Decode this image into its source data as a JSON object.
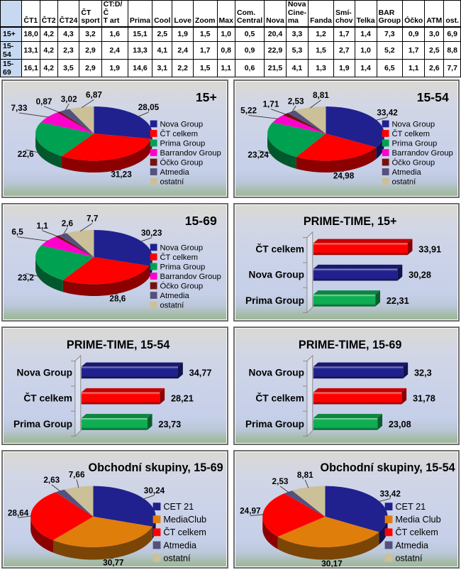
{
  "table": {
    "corner": "",
    "headers": [
      "ČT1",
      "ČT2",
      "ČT24",
      "ČT\nsport",
      "ČT:D/Č\nT art",
      "Prima",
      "Cool",
      "Love",
      "Zoom",
      "Max",
      "Com.\nCentral",
      "Nova",
      "Nova\nCine-\nma",
      "Fanda",
      "Smí-\nchov",
      "Telka",
      "BAR\nGroup",
      "Óčko",
      "ATM",
      "ost."
    ],
    "rows": [
      {
        "label": "15+",
        "values": [
          "18,0",
          "4,2",
          "4,3",
          "3,2",
          "1,6",
          "15,1",
          "2,5",
          "1,9",
          "1,5",
          "1,0",
          "0,5",
          "20,4",
          "3,3",
          "1,2",
          "1,7",
          "1,4",
          "7,3",
          "0,9",
          "3,0",
          "6,9"
        ]
      },
      {
        "label": "15-54",
        "values": [
          "13,1",
          "4,2",
          "2,3",
          "2,9",
          "2,4",
          "13,3",
          "4,1",
          "2,4",
          "1,7",
          "0,8",
          "0,9",
          "22,9",
          "5,3",
          "1,5",
          "2,7",
          "1,0",
          "5,2",
          "1,7",
          "2,5",
          "8,8"
        ]
      },
      {
        "label": "15-69",
        "values": [
          "16,1",
          "4,2",
          "3,5",
          "2,9",
          "1,9",
          "14,6",
          "3,1",
          "2,2",
          "1,5",
          "1,1",
          "0,6",
          "21,5",
          "4,1",
          "1,3",
          "1,9",
          "1,4",
          "6,5",
          "1,1",
          "2,6",
          "7,7"
        ]
      }
    ]
  },
  "colors": {
    "navy": "#20218E",
    "red": "#FF0000",
    "green": "#00A151",
    "magenta": "#FF00CC",
    "maroon": "#78100F",
    "purple": "#55517E",
    "tan": "#CBC098",
    "orange": "#E07E0C",
    "bar_green": "#0FAE52",
    "panel_border": "#6e6e6e",
    "table_accent": "#C6D9F1"
  },
  "chart_data": [
    {
      "type": "pie",
      "title": "15+",
      "title_align": "right",
      "series": [
        {
          "name": "Nova Group",
          "value": 28.05,
          "color": "#20218E"
        },
        {
          "name": "ČT celkem",
          "value": 31.23,
          "color": "#FF0000"
        },
        {
          "name": "Prima Group",
          "value": 22.6,
          "color": "#00A151"
        },
        {
          "name": "Barrandov Group",
          "value": 7.33,
          "color": "#FF00CC"
        },
        {
          "name": "Óčko Group",
          "value": 0.87,
          "color": "#78100F"
        },
        {
          "name": "Atmedia",
          "value": 3.02,
          "color": "#55517E"
        },
        {
          "name": "ostatní",
          "value": 6.87,
          "color": "#CBC098"
        }
      ]
    },
    {
      "type": "pie",
      "title": "15-54",
      "title_align": "right",
      "series": [
        {
          "name": "Nova Group",
          "value": 33.42,
          "color": "#20218E"
        },
        {
          "name": "ČT celkem",
          "value": 24.98,
          "color": "#FF0000"
        },
        {
          "name": "Prima Group",
          "value": 23.24,
          "color": "#00A151"
        },
        {
          "name": "Barrandov Group",
          "value": 5.22,
          "color": "#FF00CC"
        },
        {
          "name": "Óčko Group",
          "value": 1.71,
          "color": "#78100F"
        },
        {
          "name": "Atmedia",
          "value": 2.53,
          "color": "#55517E"
        },
        {
          "name": "ostatní",
          "value": 8.81,
          "color": "#CBC098"
        }
      ]
    },
    {
      "type": "pie",
      "title": "15-69",
      "title_align": "right",
      "series": [
        {
          "name": "Nova Group",
          "value": 30.23,
          "color": "#20218E"
        },
        {
          "name": "ČT celkem",
          "value": 28.6,
          "color": "#FF0000"
        },
        {
          "name": "Prima Group",
          "value": 23.2,
          "color": "#00A151"
        },
        {
          "name": "Barrandov Group",
          "value": 6.5,
          "color": "#FF00CC"
        },
        {
          "name": "Óčko Group",
          "value": 1.1,
          "color": "#78100F"
        },
        {
          "name": "Atmedia",
          "value": 2.6,
          "color": "#55517E"
        },
        {
          "name": "ostatní",
          "value": 7.7,
          "color": "#CBC098"
        }
      ]
    },
    {
      "type": "bar",
      "title": "PRIME-TIME, 15+",
      "title_align": "center",
      "categories": [
        "ČT celkem",
        "Nova Group",
        "Prima Group"
      ],
      "values": [
        33.91,
        30.28,
        22.31
      ],
      "bar_colors": [
        "#FF0000",
        "#20218E",
        "#0FAE52"
      ],
      "xlim": [
        0,
        40
      ]
    },
    {
      "type": "bar",
      "title": "PRIME-TIME, 15-54",
      "title_align": "center",
      "categories": [
        "Nova Group",
        "ČT celkem",
        "Prima Group"
      ],
      "values": [
        34.77,
        28.21,
        23.73
      ],
      "bar_colors": [
        "#20218E",
        "#FF0000",
        "#0FAE52"
      ],
      "xlim": [
        0,
        40
      ]
    },
    {
      "type": "bar",
      "title": "PRIME-TIME, 15-69",
      "title_align": "center",
      "categories": [
        "Nova Group",
        "ČT celkem",
        "Prima Group"
      ],
      "values": [
        32.3,
        31.78,
        23.08
      ],
      "bar_colors": [
        "#20218E",
        "#FF0000",
        "#0FAE52"
      ],
      "xlim": [
        0,
        40
      ]
    },
    {
      "type": "pie",
      "title": "Obchodní skupiny, 15-69",
      "title_align": "center",
      "series": [
        {
          "name": "CET 21",
          "value": 30.24,
          "color": "#20218E"
        },
        {
          "name": "MediaClub",
          "value": 30.77,
          "color": "#E07E0C"
        },
        {
          "name": "ČT celkem",
          "value": 28.64,
          "color": "#FF0000"
        },
        {
          "name": "Atmedia",
          "value": 2.63,
          "color": "#55517E"
        },
        {
          "name": "ostatní",
          "value": 7.66,
          "color": "#CBC098"
        }
      ]
    },
    {
      "type": "pie",
      "title": "Obchodní skupiny, 15-54",
      "title_align": "center",
      "series": [
        {
          "name": "CET 21",
          "value": 33.42,
          "color": "#20218E"
        },
        {
          "name": "Media Club",
          "value": 30.17,
          "color": "#E07E0C"
        },
        {
          "name": "ČT celkem",
          "value": 24.97,
          "color": "#FF0000"
        },
        {
          "name": "Atmedia",
          "value": 2.53,
          "color": "#55517E"
        },
        {
          "name": "ostatní",
          "value": 8.81,
          "color": "#CBC098"
        }
      ]
    }
  ]
}
